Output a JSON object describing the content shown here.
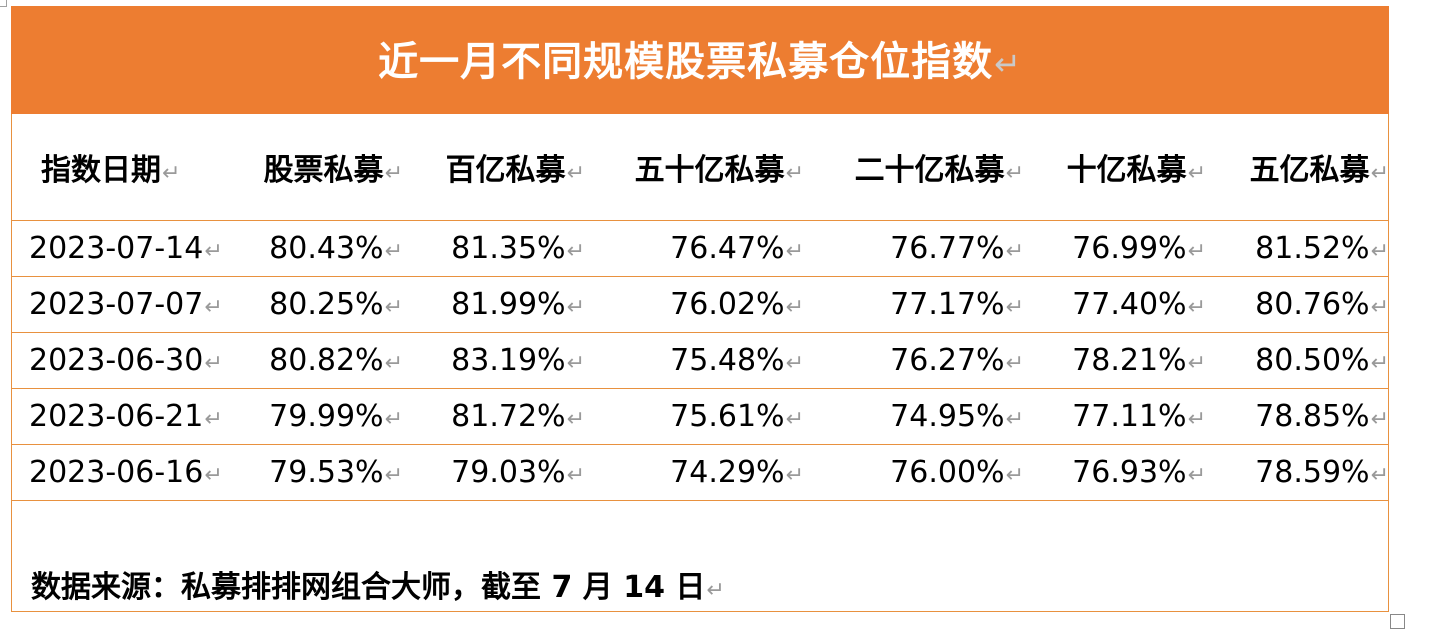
{
  "title": "近一月不同规模股票私募仓位指数",
  "return_mark": "↵",
  "table": {
    "columns": [
      "指数日期",
      "股票私募",
      "百亿私募",
      "五十亿私募",
      "二十亿私募",
      "十亿私募",
      "五亿私募"
    ],
    "rows": [
      [
        "2023-07-14",
        "80.43%",
        "81.35%",
        "76.47%",
        "76.77%",
        "76.99%",
        "81.52%"
      ],
      [
        "2023-07-07",
        "80.25%",
        "81.99%",
        "76.02%",
        "77.17%",
        "77.40%",
        "80.76%"
      ],
      [
        "2023-06-30",
        "80.82%",
        "83.19%",
        "75.48%",
        "76.27%",
        "78.21%",
        "80.50%"
      ],
      [
        "2023-06-21",
        "79.99%",
        "81.72%",
        "75.61%",
        "74.95%",
        "77.11%",
        "78.85%"
      ],
      [
        "2023-06-16",
        "79.53%",
        "79.03%",
        "74.29%",
        "76.00%",
        "76.93%",
        "78.59%"
      ]
    ]
  },
  "source": "数据来源：私募排排网组合大师，截至 7 月 14 日",
  "colors": {
    "banner": "#ed7d31",
    "rule": "#e8913f"
  }
}
